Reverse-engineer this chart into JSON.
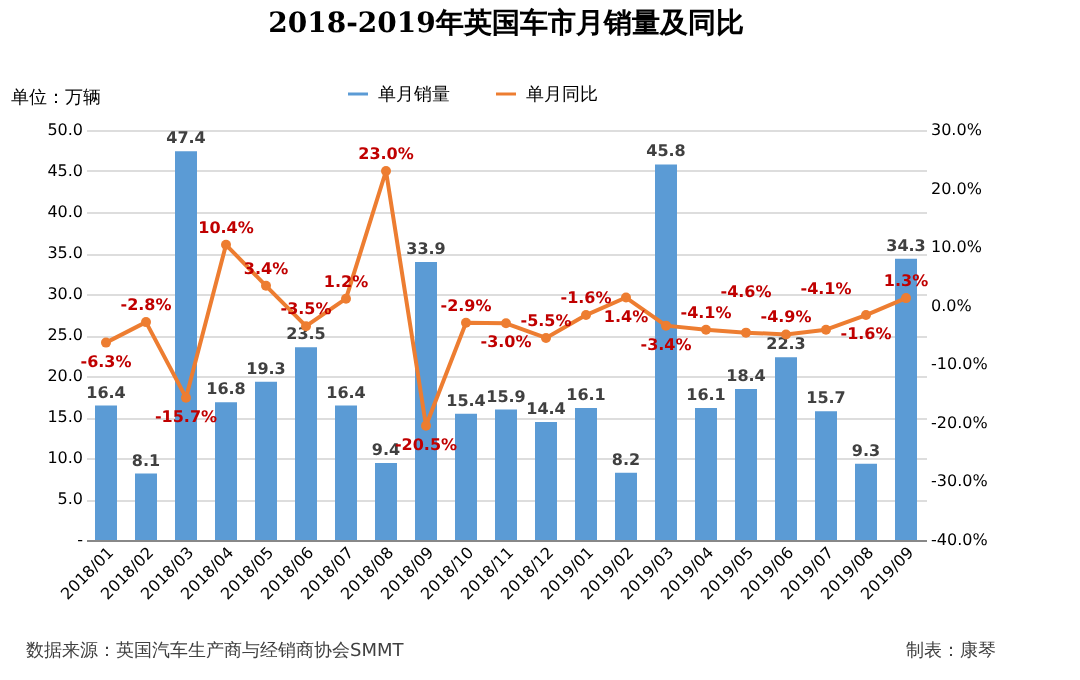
{
  "chart_data": {
    "type": "bar",
    "title": "2018-2019年英国车市月销量及同比",
    "ylabel": "单位：万辆",
    "categories": [
      "2018/01",
      "2018/02",
      "2018/03",
      "2018/04",
      "2018/05",
      "2018/06",
      "2018/07",
      "2018/08",
      "2018/09",
      "2018/10",
      "2018/11",
      "2018/12",
      "2019/01",
      "2019/02",
      "2019/03",
      "2019/04",
      "2019/05",
      "2019/06",
      "2019/07",
      "2019/08",
      "2019/09"
    ],
    "series": [
      {
        "name": "单月销量",
        "type": "bar",
        "color": "#5b9bd5",
        "values": [
          16.4,
          8.1,
          47.4,
          16.8,
          19.3,
          23.5,
          16.4,
          9.4,
          33.9,
          15.4,
          15.9,
          14.4,
          16.1,
          8.2,
          45.8,
          16.1,
          18.4,
          22.3,
          15.7,
          9.3,
          34.3
        ],
        "value_labels": [
          "16.4",
          "8.1",
          "47.4",
          "16.8",
          "19.3",
          "23.5",
          "16.4",
          "9.4",
          "33.9",
          "15.4",
          "15.9",
          "14.4",
          "16.1",
          "8.2",
          "45.8",
          "16.1",
          "18.4",
          "22.3",
          "15.7",
          "9.3",
          "34.3"
        ]
      },
      {
        "name": "单月同比",
        "type": "line",
        "axis": "y2",
        "color": "#ed7d31",
        "values": [
          -6.3,
          -2.8,
          -15.7,
          10.4,
          3.4,
          -3.5,
          1.2,
          23.0,
          -20.5,
          -2.9,
          -3.0,
          -5.5,
          -1.6,
          1.4,
          -3.4,
          -4.1,
          -4.6,
          -4.9,
          -4.1,
          -1.6,
          1.3
        ],
        "value_labels": [
          "-6.3%",
          "-2.8%",
          "-15.7%",
          "10.4%",
          "3.4%",
          "-3.5%",
          "1.2%",
          "23.0%",
          "-20.5%",
          "-2.9%",
          "-3.0%",
          "-5.5%",
          "-1.6%",
          "1.4%",
          "-3.4%",
          "-4.1%",
          "-4.6%",
          "-4.9%",
          "-4.1%",
          "-1.6%",
          "1.3%"
        ]
      }
    ],
    "ylim": [
      0,
      50
    ],
    "yticks": [
      {
        "value": 0,
        "label": "-"
      },
      {
        "value": 5,
        "label": "5.0"
      },
      {
        "value": 10,
        "label": "10.0"
      },
      {
        "value": 15,
        "label": "15.0"
      },
      {
        "value": 20,
        "label": "20.0"
      },
      {
        "value": 25,
        "label": "25.0"
      },
      {
        "value": 30,
        "label": "30.0"
      },
      {
        "value": 35,
        "label": "35.0"
      },
      {
        "value": 40,
        "label": "40.0"
      },
      {
        "value": 45,
        "label": "45.0"
      },
      {
        "value": 50,
        "label": "50.0"
      }
    ],
    "y2lim": [
      -40,
      30
    ],
    "y2ticks": [
      {
        "value": -40,
        "label": "-40.0%"
      },
      {
        "value": -30,
        "label": "-30.0%"
      },
      {
        "value": -20,
        "label": "-20.0%"
      },
      {
        "value": -10,
        "label": "-10.0%"
      },
      {
        "value": 0,
        "label": "0.0%"
      },
      {
        "value": 10,
        "label": "10.0%"
      },
      {
        "value": 20,
        "label": "20.0%"
      },
      {
        "value": 30,
        "label": "30.0%"
      }
    ],
    "grid": "y",
    "legend": "top",
    "marker": "circle",
    "line_style": "solid",
    "annotations": [
      "数据来源：英国汽车生产商与经销商协会SMMT",
      "制表：康琴"
    ]
  }
}
